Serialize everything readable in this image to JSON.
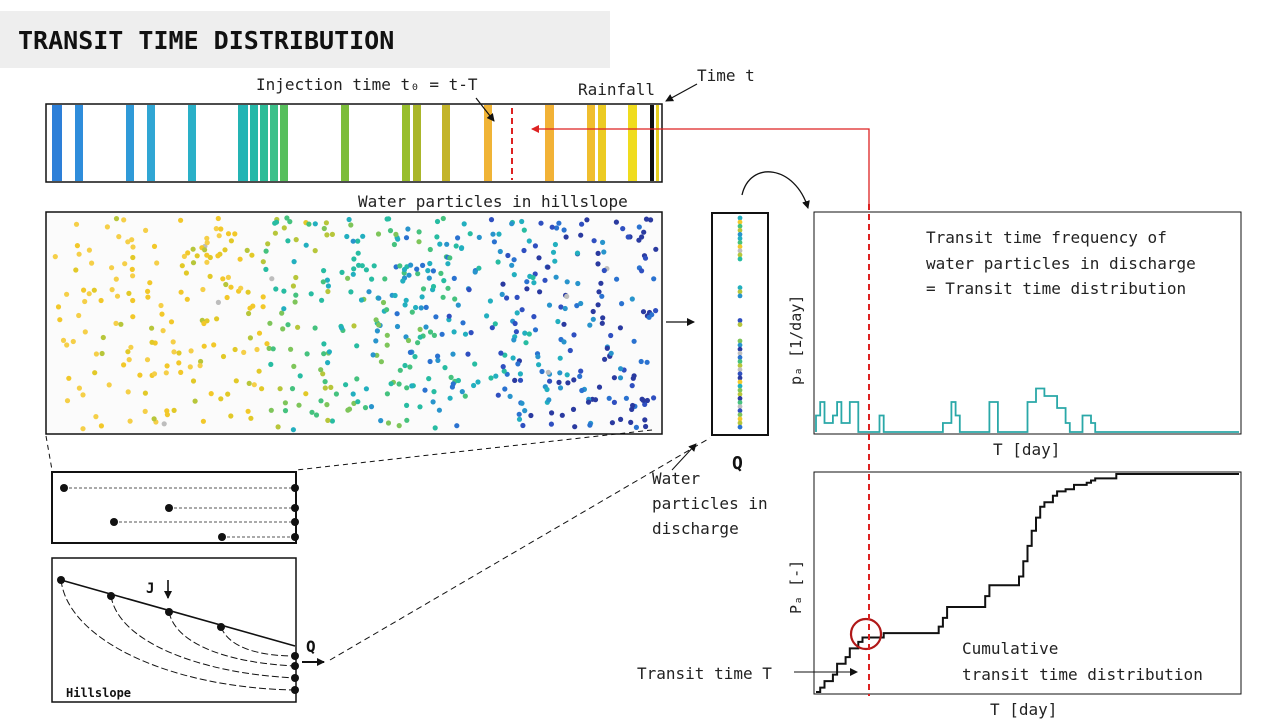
{
  "slide": {
    "title": "TRANSIT TIME DISTRIBUTION",
    "labels": {
      "injection_time": "Injection time t₀ = t-T",
      "time_t": "Time t",
      "rainfall": "Rainfall",
      "water_particles_hillslope": "Water particles in hillslope",
      "q_label": "Q",
      "water_particles_discharge": [
        "Water",
        "particles in",
        "discharge"
      ],
      "pdf_annotation": [
        "Transit time frequency of",
        "water particles in discharge",
        "= Transit time distribution"
      ],
      "pdf_ylabel": "pₐ [1/day]",
      "pdf_xlabel": "T [day]",
      "cdf_ylabel": "Pₐ [-]",
      "cdf_xlabel": "T [day]",
      "cdf_annotation": [
        "Cumulative",
        "transit time distribution"
      ],
      "transit_time_T": "Transit time T",
      "schematic_j": "J",
      "schematic_q": "Q",
      "schematic_hillslope": "Hillslope"
    },
    "colors": {
      "dashed_marker": "#dd2222",
      "pdf_line": "#2aa8a8",
      "cdf_line": "#111111",
      "highlight_circle": "#b01818",
      "title_bar": "#eeeeee"
    },
    "rainfall_bars": [
      {
        "color": "#2d7fd8"
      },
      {
        "color": "#2f8ddb"
      },
      {
        "color": "#2f9ad8"
      },
      {
        "color": "#30a6d4"
      },
      {
        "color": "#2ab0c8"
      },
      {
        "color": "#24b4b4"
      },
      {
        "color": "#26b8a8"
      },
      {
        "color": "#2cbc98"
      },
      {
        "color": "#3cc08a"
      },
      {
        "color": "#56bf5c"
      },
      {
        "color": "#7cbd3a"
      },
      {
        "color": "#98be2c"
      },
      {
        "color": "#aab62a"
      },
      {
        "color": "#c3b42a"
      },
      {
        "color": "#f0b436"
      },
      {
        "color": "#f2b236"
      },
      {
        "color": "#f0be2e"
      },
      {
        "color": "#eccb22"
      },
      {
        "color": "#f0dc1e"
      }
    ]
  },
  "chart_data": [
    {
      "type": "line",
      "title": "Transit time frequency of water particles in discharge = Transit time distribution",
      "xlabel": "T [day]",
      "ylabel": "pₐ [1/day]",
      "series": [
        {
          "values": [
            0.55,
            1,
            0.3,
            0.3,
            0.55,
            1,
            0.3,
            0.3,
            1,
            1,
            0,
            0,
            0,
            0,
            0,
            0.55,
            0,
            0,
            0,
            0,
            0,
            0,
            0,
            0,
            0,
            0,
            0,
            0,
            0,
            0,
            0.3,
            0.3,
            1,
            0.55,
            0,
            0,
            0,
            0,
            0,
            0,
            0,
            1,
            1,
            0,
            0,
            0,
            0,
            0,
            0,
            0,
            1,
            1,
            1.45,
            1.45,
            1.2,
            1.2,
            1.2,
            0.8,
            0.8,
            0.3,
            0,
            0,
            0,
            0.55,
            0.55,
            0.3,
            0,
            0,
            0,
            0,
            0,
            0,
            0,
            0,
            0,
            0,
            0,
            0,
            0,
            0,
            0,
            0,
            0,
            0,
            0,
            0,
            0,
            0,
            0,
            0,
            0,
            0,
            0,
            0,
            0,
            0,
            0,
            0,
            0,
            0
          ]
        }
      ]
    },
    {
      "type": "line",
      "title": "Cumulative transit time distribution",
      "xlabel": "T [day]",
      "ylabel": "Pₐ [-]",
      "series": [
        {
          "values": [
            0,
            0.02,
            0.05,
            0.05,
            0.08,
            0.13,
            0.13,
            0.16,
            0.2,
            0.2,
            0.23,
            0.25,
            0.25,
            0.25,
            0.25,
            0.25,
            0.27,
            0.27,
            0.27,
            0.27,
            0.27,
            0.27,
            0.27,
            0.27,
            0.27,
            0.27,
            0.27,
            0.27,
            0.27,
            0.3,
            0.34,
            0.39,
            0.39,
            0.39,
            0.39,
            0.39,
            0.39,
            0.39,
            0.39,
            0.39,
            0.44,
            0.49,
            0.49,
            0.49,
            0.49,
            0.49,
            0.49,
            0.49,
            0.53,
            0.6,
            0.67,
            0.74,
            0.8,
            0.85,
            0.87,
            0.87,
            0.9,
            0.92,
            0.92,
            0.93,
            0.93,
            0.95,
            0.95,
            0.95,
            0.96,
            0.97,
            0.98,
            0.98,
            0.98,
            0.98,
            0.98,
            1,
            1,
            1,
            1,
            1,
            1,
            1,
            1,
            1,
            1,
            1,
            1,
            1,
            1,
            1,
            1,
            1,
            1,
            1,
            1,
            1,
            1,
            1,
            1,
            1,
            1,
            1,
            1,
            1
          ]
        }
      ]
    }
  ]
}
